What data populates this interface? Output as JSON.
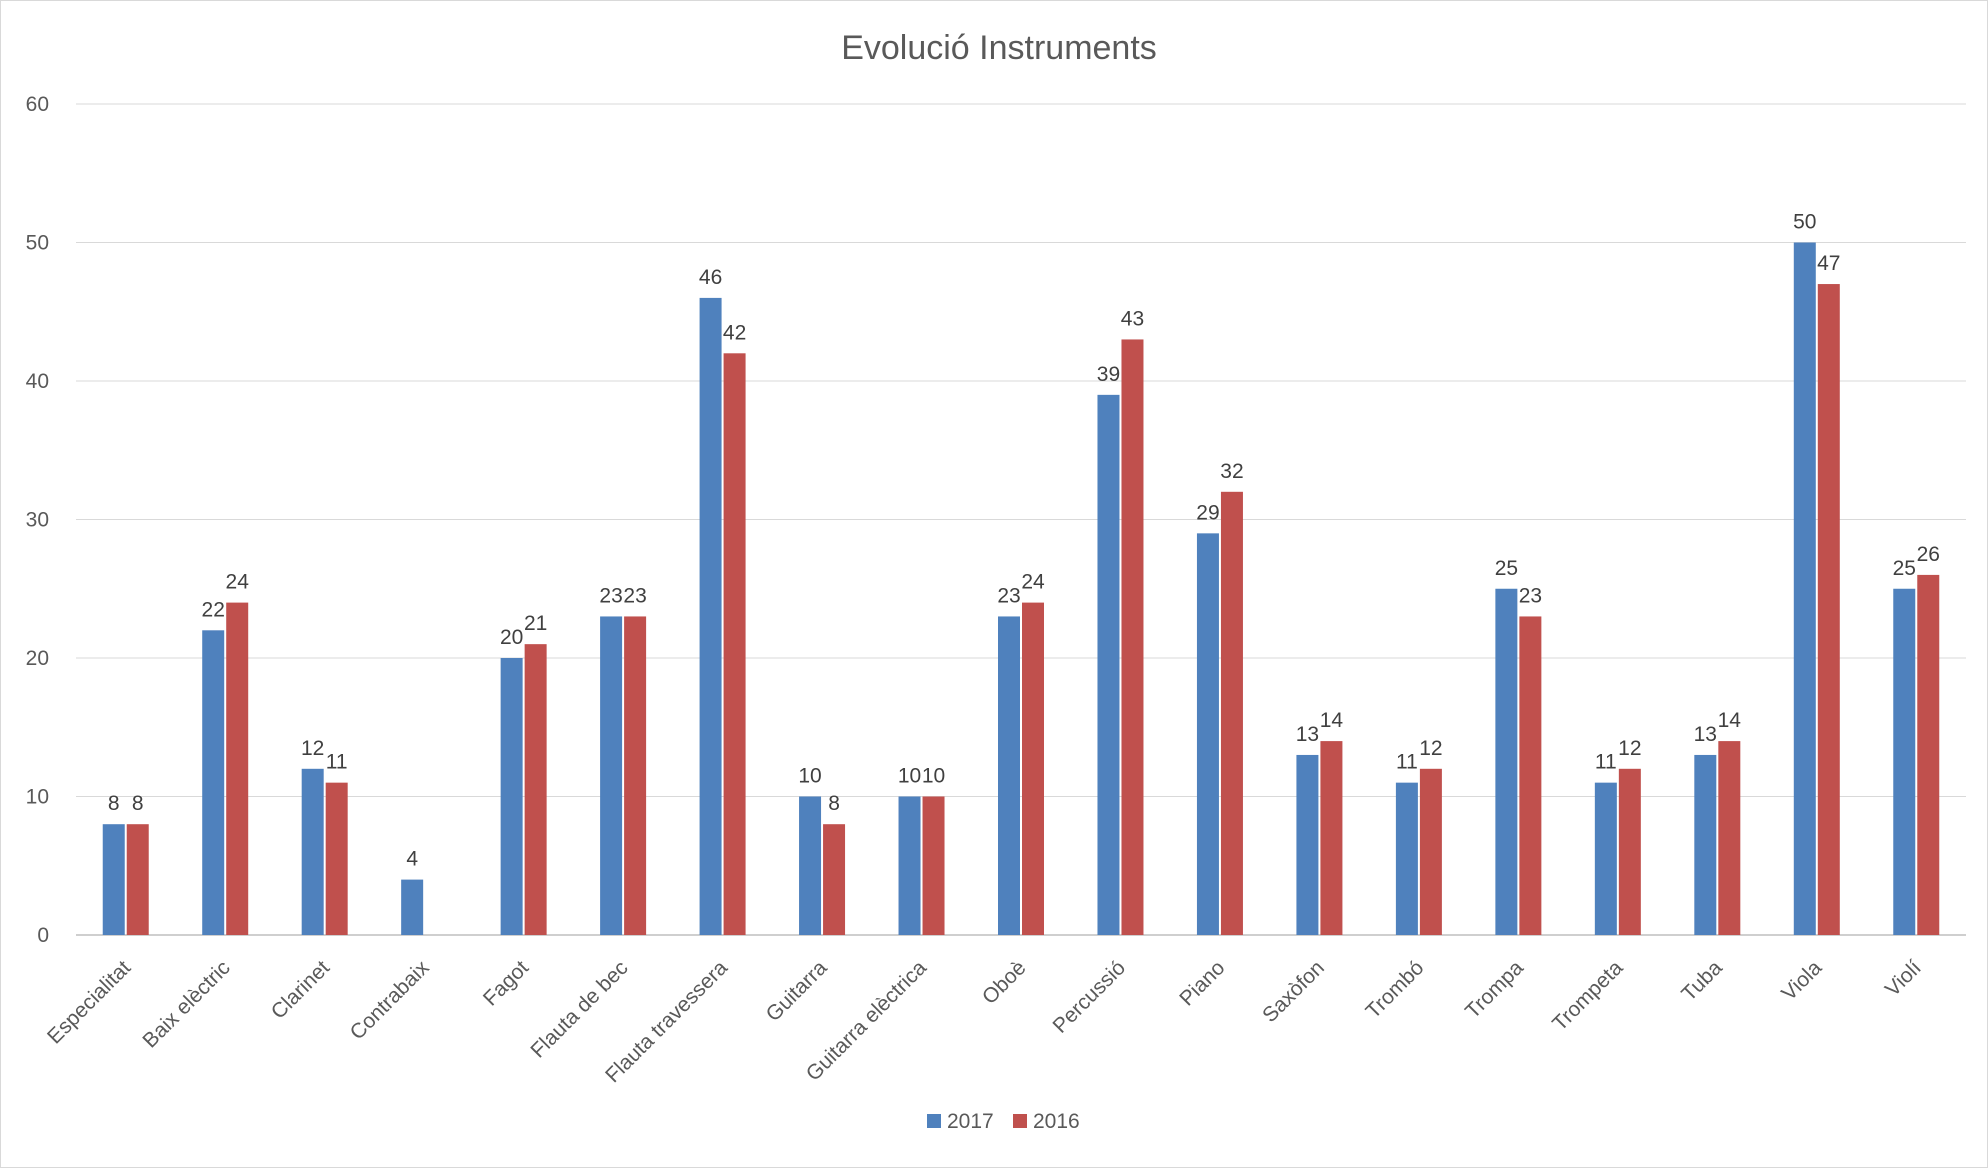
{
  "chart_data": {
    "type": "bar",
    "title": "Evolució Instruments",
    "xlabel": "",
    "ylabel": "",
    "ylim": [
      0,
      60
    ],
    "yticks": [
      0,
      10,
      20,
      30,
      40,
      50,
      60
    ],
    "grid": true,
    "legend_position": "bottom",
    "categories": [
      "Especialitat",
      "Baix elèctric",
      "Clarinet",
      "Contrabaix",
      "Fagot",
      "Flauta de bec",
      "Flauta travessera",
      "Guitarra",
      "Guitarra elèctrica",
      "Oboè",
      "Percussió",
      "Piano",
      "Saxòfon",
      "Trombó",
      "Trompa",
      "Trompeta",
      "Tuba",
      "Viola",
      "Violí"
    ],
    "series": [
      {
        "name": "2017",
        "color": "#4f81bd",
        "values": [
          8,
          22,
          12,
          4,
          20,
          23,
          46,
          10,
          10,
          23,
          39,
          29,
          13,
          11,
          25,
          11,
          13,
          50,
          25
        ]
      },
      {
        "name": "2016",
        "color": "#c0504d",
        "values": [
          8,
          24,
          11,
          null,
          21,
          23,
          42,
          8,
          10,
          24,
          43,
          32,
          14,
          12,
          23,
          12,
          14,
          47,
          26
        ]
      }
    ]
  }
}
